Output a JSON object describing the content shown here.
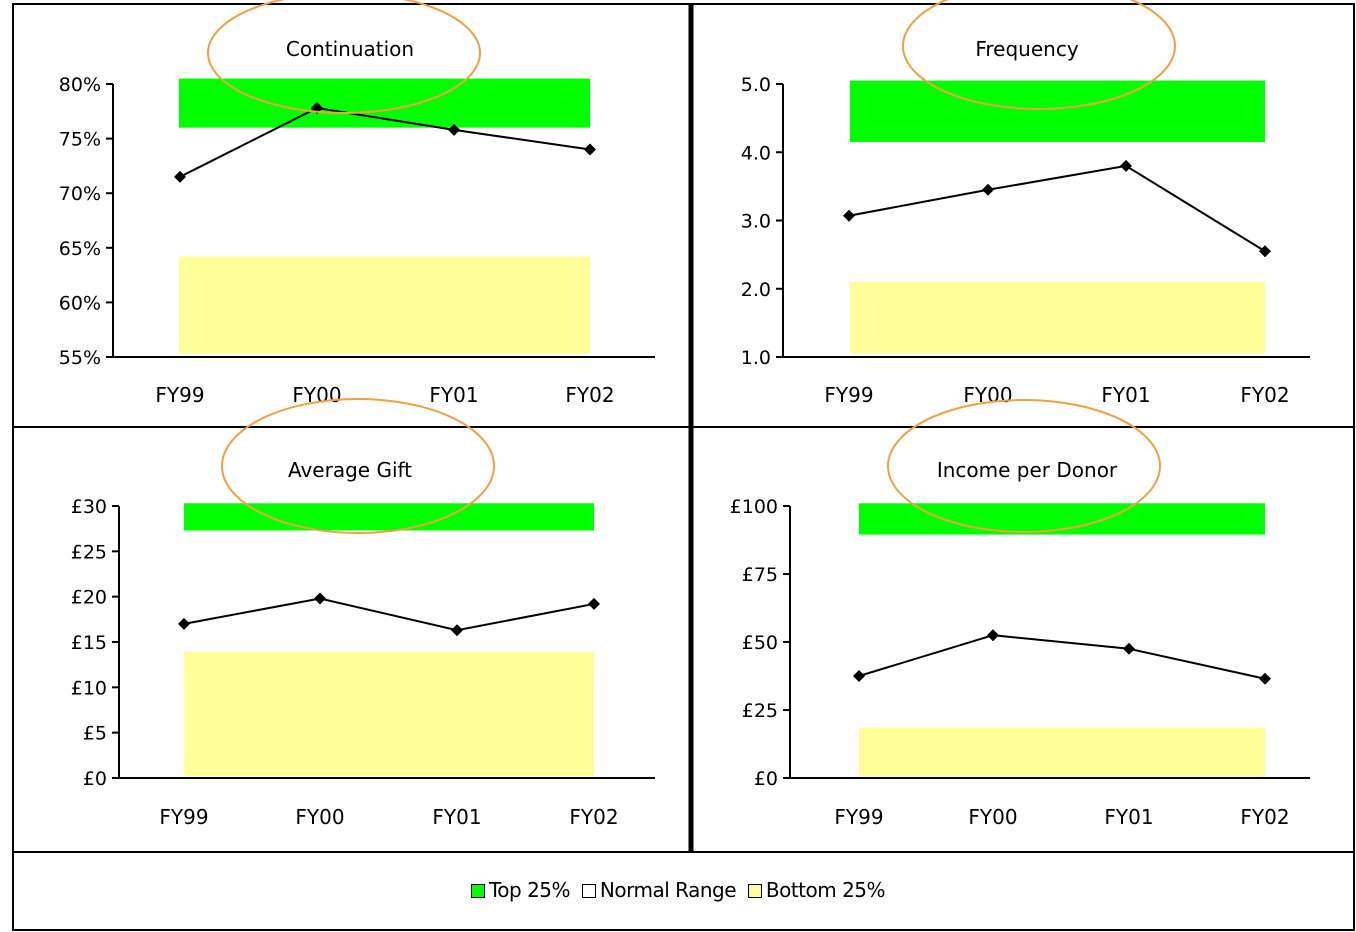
{
  "colors": {
    "top_band": "#00ff00",
    "bottom_band": "#ffff99",
    "annotation_ellipse": "#f0a040",
    "series_line": "#000000"
  },
  "legend": {
    "items": [
      {
        "label": "Top 25%",
        "color": "#00ff00"
      },
      {
        "label": "Normal Range",
        "color": "#ffffff"
      },
      {
        "label": "Bottom 25%",
        "color": "#ffff99"
      }
    ]
  },
  "chart_data": [
    {
      "type": "line",
      "title": "Continuation",
      "categories": [
        "FY99",
        "FY00",
        "FY01",
        "FY02"
      ],
      "values": [
        71.5,
        77.8,
        75.8,
        74.0
      ],
      "ylim": [
        55,
        80
      ],
      "yticks": [
        55,
        60,
        65,
        70,
        75,
        80
      ],
      "ytick_labels": [
        "55%",
        "60%",
        "65%",
        "70%",
        "75%",
        "80%"
      ],
      "bands": {
        "top": [
          76,
          80.5
        ],
        "bottom": [
          55.3,
          64.2
        ]
      }
    },
    {
      "type": "line",
      "title": "Frequency",
      "categories": [
        "FY99",
        "FY00",
        "FY01",
        "FY02"
      ],
      "values": [
        3.07,
        3.45,
        3.8,
        2.55
      ],
      "ylim": [
        1,
        5
      ],
      "yticks": [
        1,
        2,
        3,
        4,
        5
      ],
      "ytick_labels": [
        "1.0",
        "2.0",
        "3.0",
        "4.0",
        "5.0"
      ],
      "bands": {
        "top": [
          4.15,
          5.05
        ],
        "bottom": [
          1.05,
          2.1
        ]
      }
    },
    {
      "type": "line",
      "title": "Average Gift",
      "categories": [
        "FY99",
        "FY00",
        "FY01",
        "FY02"
      ],
      "values": [
        17.0,
        19.8,
        16.3,
        19.2
      ],
      "ylim": [
        0,
        30
      ],
      "yticks": [
        0,
        5,
        10,
        15,
        20,
        25,
        30
      ],
      "ytick_labels": [
        "£0",
        "£5",
        "£10",
        "£15",
        "£20",
        "£25",
        "£30"
      ],
      "bands": {
        "top": [
          27.3,
          30.3
        ],
        "bottom": [
          0.2,
          13.9
        ]
      }
    },
    {
      "type": "line",
      "title": "Income per Donor",
      "categories": [
        "FY99",
        "FY00",
        "FY01",
        "FY02"
      ],
      "values": [
        37.5,
        52.5,
        47.5,
        36.5
      ],
      "ylim": [
        0,
        100
      ],
      "yticks": [
        0,
        25,
        50,
        75,
        100
      ],
      "ytick_labels": [
        "£0",
        "£25",
        "£50",
        "£75",
        "£100"
      ],
      "bands": {
        "top": [
          89.5,
          101
        ],
        "bottom": [
          0.5,
          18.5
        ]
      }
    }
  ]
}
